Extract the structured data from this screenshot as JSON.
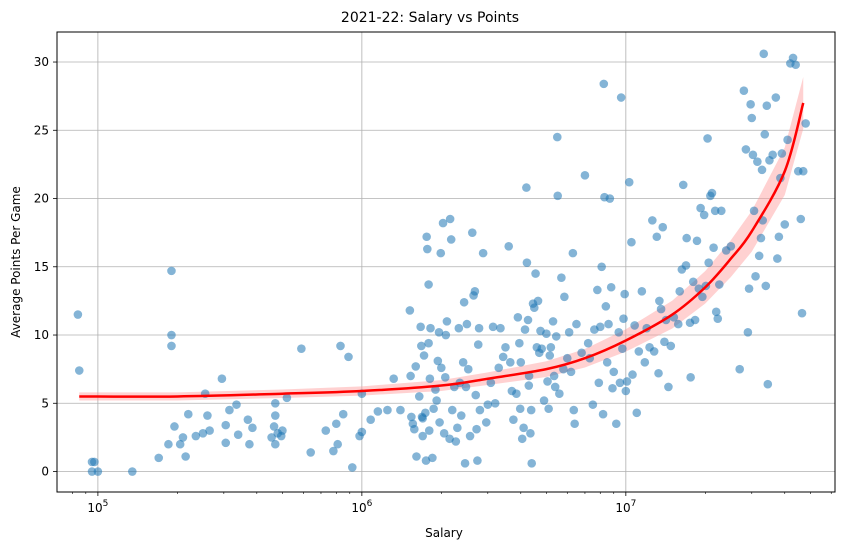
{
  "chart_data": {
    "type": "scatter",
    "title": "2021-22: Salary vs Points",
    "xlabel": "Salary",
    "ylabel": "Average Points Per Game",
    "x_scale": "log",
    "xlim": [
      70000,
      62000000
    ],
    "ylim": [
      -1.5,
      32.2
    ],
    "x_ticks": [
      100000,
      1000000,
      10000000
    ],
    "x_tick_labels": [
      {
        "base": "10",
        "exp": "5"
      },
      {
        "base": "10",
        "exp": "6"
      },
      {
        "base": "10",
        "exp": "7"
      }
    ],
    "y_ticks": [
      0,
      5,
      10,
      15,
      20,
      25,
      30
    ],
    "grid": true,
    "colors": {
      "points": "#1f77b4",
      "fit_line": "#ff0000",
      "confidence_band": "#ff9a9a",
      "grid": "#b0b0b0"
    },
    "regression_fit": {
      "x": [
        85000,
        200000,
        500000,
        1000000,
        2000000,
        3000000,
        5000000,
        7000000,
        10000000,
        15000000,
        20000000,
        25000000,
        30000000,
        40000000,
        47000000
      ],
      "y": [
        5.5,
        5.5,
        5.7,
        5.9,
        6.3,
        6.8,
        7.5,
        8.3,
        9.6,
        11.5,
        13.5,
        15.6,
        17.6,
        22.0,
        27.0
      ]
    },
    "points": [
      [
        84000,
        11.5
      ],
      [
        85000,
        7.4
      ],
      [
        95000,
        0.0
      ],
      [
        95000,
        0.7
      ],
      [
        97000,
        0.7
      ],
      [
        100000,
        0.0
      ],
      [
        135000,
        0.0
      ],
      [
        170000,
        1.0
      ],
      [
        185000,
        2.0
      ],
      [
        190000,
        9.2
      ],
      [
        190000,
        10.0
      ],
      [
        190000,
        14.7
      ],
      [
        195000,
        3.3
      ],
      [
        205000,
        2.0
      ],
      [
        210000,
        2.5
      ],
      [
        215000,
        1.1
      ],
      [
        220000,
        4.2
      ],
      [
        235000,
        2.6
      ],
      [
        250000,
        2.8
      ],
      [
        255000,
        5.7
      ],
      [
        260000,
        4.1
      ],
      [
        265000,
        3.0
      ],
      [
        295000,
        6.8
      ],
      [
        305000,
        2.1
      ],
      [
        305000,
        3.4
      ],
      [
        315000,
        4.5
      ],
      [
        335000,
        4.9
      ],
      [
        340000,
        2.7
      ],
      [
        370000,
        3.8
      ],
      [
        375000,
        2.0
      ],
      [
        385000,
        3.2
      ],
      [
        455000,
        2.5
      ],
      [
        465000,
        3.3
      ],
      [
        470000,
        4.1
      ],
      [
        470000,
        5.0
      ],
      [
        470000,
        2.0
      ],
      [
        480000,
        2.8
      ],
      [
        495000,
        2.6
      ],
      [
        500000,
        3.0
      ],
      [
        520000,
        5.4
      ],
      [
        590000,
        9.0
      ],
      [
        640000,
        1.4
      ],
      [
        730000,
        3.0
      ],
      [
        780000,
        1.5
      ],
      [
        800000,
        3.5
      ],
      [
        810000,
        2.0
      ],
      [
        830000,
        9.2
      ],
      [
        850000,
        4.2
      ],
      [
        890000,
        8.4
      ],
      [
        920000,
        0.3
      ],
      [
        980000,
        2.6
      ],
      [
        1000000,
        5.7
      ],
      [
        1000000,
        2.9
      ],
      [
        1080000,
        3.8
      ],
      [
        1150000,
        4.4
      ],
      [
        1250000,
        4.5
      ],
      [
        1320000,
        6.8
      ],
      [
        1400000,
        4.5
      ],
      [
        1520000,
        11.8
      ],
      [
        1530000,
        7.0
      ],
      [
        1540000,
        4.0
      ],
      [
        1560000,
        3.5
      ],
      [
        1580000,
        3.1
      ],
      [
        1600000,
        7.7
      ],
      [
        1610000,
        1.1
      ],
      [
        1650000,
        5.5
      ],
      [
        1670000,
        10.6
      ],
      [
        1680000,
        9.2
      ],
      [
        1690000,
        4.0
      ],
      [
        1700000,
        3.9
      ],
      [
        1700000,
        2.6
      ],
      [
        1720000,
        8.5
      ],
      [
        1740000,
        4.3
      ],
      [
        1750000,
        0.8
      ],
      [
        1760000,
        17.2
      ],
      [
        1770000,
        16.3
      ],
      [
        1790000,
        13.7
      ],
      [
        1790000,
        9.4
      ],
      [
        1800000,
        3.0
      ],
      [
        1810000,
        6.8
      ],
      [
        1820000,
        10.5
      ],
      [
        1850000,
        1.0
      ],
      [
        1870000,
        4.6
      ],
      [
        1900000,
        6.0
      ],
      [
        1920000,
        5.2
      ],
      [
        1940000,
        8.1
      ],
      [
        1960000,
        10.2
      ],
      [
        1970000,
        3.6
      ],
      [
        1990000,
        16.0
      ],
      [
        2000000,
        7.6
      ],
      [
        2030000,
        18.2
      ],
      [
        2050000,
        2.8
      ],
      [
        2070000,
        6.9
      ],
      [
        2080000,
        10.0
      ],
      [
        2100000,
        11.0
      ],
      [
        2150000,
        2.4
      ],
      [
        2160000,
        18.5
      ],
      [
        2180000,
        17.0
      ],
      [
        2200000,
        4.5
      ],
      [
        2240000,
        6.2
      ],
      [
        2270000,
        2.2
      ],
      [
        2300000,
        3.2
      ],
      [
        2330000,
        10.5
      ],
      [
        2350000,
        6.5
      ],
      [
        2380000,
        4.1
      ],
      [
        2420000,
        8.0
      ],
      [
        2440000,
        12.4
      ],
      [
        2460000,
        0.6
      ],
      [
        2480000,
        6.2
      ],
      [
        2500000,
        10.8
      ],
      [
        2530000,
        7.5
      ],
      [
        2570000,
        2.6
      ],
      [
        2620000,
        17.5
      ],
      [
        2650000,
        12.9
      ],
      [
        2680000,
        13.2
      ],
      [
        2700000,
        5.6
      ],
      [
        2720000,
        3.1
      ],
      [
        2740000,
        0.8
      ],
      [
        2760000,
        9.3
      ],
      [
        2780000,
        10.5
      ],
      [
        2800000,
        4.5
      ],
      [
        2880000,
        16.0
      ],
      [
        2960000,
        3.6
      ],
      [
        3000000,
        4.9
      ],
      [
        3080000,
        6.5
      ],
      [
        3140000,
        10.6
      ],
      [
        3200000,
        5.0
      ],
      [
        3300000,
        7.6
      ],
      [
        3350000,
        10.5
      ],
      [
        3430000,
        8.4
      ],
      [
        3500000,
        9.1
      ],
      [
        3600000,
        16.5
      ],
      [
        3650000,
        8.0
      ],
      [
        3700000,
        5.9
      ],
      [
        3750000,
        3.8
      ],
      [
        3850000,
        5.7
      ],
      [
        3900000,
        11.3
      ],
      [
        3950000,
        9.4
      ],
      [
        3980000,
        4.6
      ],
      [
        4000000,
        8.0
      ],
      [
        4050000,
        2.4
      ],
      [
        4100000,
        3.2
      ],
      [
        4150000,
        10.4
      ],
      [
        4200000,
        20.8
      ],
      [
        4220000,
        15.3
      ],
      [
        4260000,
        11.1
      ],
      [
        4290000,
        6.3
      ],
      [
        4300000,
        7.0
      ],
      [
        4350000,
        2.8
      ],
      [
        4380000,
        4.5
      ],
      [
        4400000,
        0.6
      ],
      [
        4450000,
        12.3
      ],
      [
        4500000,
        12.0
      ],
      [
        4550000,
        14.5
      ],
      [
        4600000,
        9.1
      ],
      [
        4650000,
        12.5
      ],
      [
        4700000,
        8.7
      ],
      [
        4750000,
        10.3
      ],
      [
        4800000,
        9.0
      ],
      [
        4900000,
        5.2
      ],
      [
        5000000,
        10.1
      ],
      [
        5050000,
        6.6
      ],
      [
        5100000,
        4.6
      ],
      [
        5150000,
        8.5
      ],
      [
        5200000,
        9.1
      ],
      [
        5300000,
        11.0
      ],
      [
        5350000,
        7.0
      ],
      [
        5400000,
        6.2
      ],
      [
        5450000,
        9.9
      ],
      [
        5500000,
        24.5
      ],
      [
        5520000,
        20.2
      ],
      [
        5600000,
        5.7
      ],
      [
        5700000,
        14.2
      ],
      [
        5800000,
        7.5
      ],
      [
        5850000,
        12.8
      ],
      [
        6000000,
        8.3
      ],
      [
        6100000,
        10.2
      ],
      [
        6200000,
        7.3
      ],
      [
        6300000,
        16.0
      ],
      [
        6350000,
        4.5
      ],
      [
        6400000,
        3.5
      ],
      [
        6500000,
        10.8
      ],
      [
        6800000,
        8.7
      ],
      [
        7000000,
        21.7
      ],
      [
        7200000,
        9.4
      ],
      [
        7300000,
        8.3
      ],
      [
        7500000,
        4.9
      ],
      [
        7600000,
        10.4
      ],
      [
        7800000,
        13.3
      ],
      [
        7900000,
        6.5
      ],
      [
        8000000,
        10.6
      ],
      [
        8100000,
        15.0
      ],
      [
        8200000,
        4.2
      ],
      [
        8250000,
        28.4
      ],
      [
        8300000,
        20.1
      ],
      [
        8400000,
        12.1
      ],
      [
        8500000,
        8.0
      ],
      [
        8600000,
        10.8
      ],
      [
        8700000,
        20.0
      ],
      [
        8800000,
        13.5
      ],
      [
        8900000,
        6.1
      ],
      [
        9000000,
        7.3
      ],
      [
        9200000,
        3.5
      ],
      [
        9400000,
        10.2
      ],
      [
        9500000,
        6.5
      ],
      [
        9600000,
        27.4
      ],
      [
        9700000,
        9.0
      ],
      [
        9800000,
        11.2
      ],
      [
        9900000,
        13.0
      ],
      [
        10000000,
        5.9
      ],
      [
        10100000,
        6.6
      ],
      [
        10300000,
        21.2
      ],
      [
        10500000,
        16.8
      ],
      [
        10600000,
        7.1
      ],
      [
        10800000,
        10.7
      ],
      [
        11000000,
        4.3
      ],
      [
        11200000,
        8.8
      ],
      [
        11500000,
        13.2
      ],
      [
        11800000,
        8.0
      ],
      [
        12000000,
        10.5
      ],
      [
        12300000,
        9.1
      ],
      [
        12600000,
        18.4
      ],
      [
        12800000,
        8.8
      ],
      [
        13100000,
        17.2
      ],
      [
        13300000,
        7.2
      ],
      [
        13400000,
        12.5
      ],
      [
        13600000,
        11.9
      ],
      [
        13800000,
        17.9
      ],
      [
        14000000,
        9.5
      ],
      [
        14200000,
        11.1
      ],
      [
        14500000,
        6.2
      ],
      [
        14800000,
        9.2
      ],
      [
        15200000,
        11.3
      ],
      [
        15800000,
        10.8
      ],
      [
        16000000,
        13.2
      ],
      [
        16300000,
        14.8
      ],
      [
        16500000,
        21.0
      ],
      [
        16900000,
        15.1
      ],
      [
        17000000,
        17.1
      ],
      [
        17500000,
        10.9
      ],
      [
        17600000,
        6.9
      ],
      [
        18000000,
        13.9
      ],
      [
        18300000,
        11.1
      ],
      [
        18600000,
        16.9
      ],
      [
        18900000,
        13.4
      ],
      [
        19200000,
        19.3
      ],
      [
        19500000,
        12.8
      ],
      [
        19800000,
        18.8
      ],
      [
        20100000,
        13.6
      ],
      [
        20400000,
        24.4
      ],
      [
        20600000,
        15.3
      ],
      [
        20900000,
        20.2
      ],
      [
        21200000,
        20.4
      ],
      [
        21500000,
        16.4
      ],
      [
        21800000,
        19.1
      ],
      [
        22000000,
        11.7
      ],
      [
        22300000,
        11.2
      ],
      [
        22600000,
        13.7
      ],
      [
        23000000,
        19.1
      ],
      [
        24000000,
        16.2
      ],
      [
        25000000,
        16.5
      ],
      [
        27000000,
        7.5
      ],
      [
        28000000,
        27.9
      ],
      [
        28500000,
        23.6
      ],
      [
        29000000,
        10.2
      ],
      [
        29300000,
        13.4
      ],
      [
        29700000,
        26.9
      ],
      [
        30000000,
        25.9
      ],
      [
        30300000,
        23.2
      ],
      [
        30600000,
        19.1
      ],
      [
        31000000,
        14.3
      ],
      [
        31500000,
        22.7
      ],
      [
        32000000,
        15.8
      ],
      [
        32500000,
        17.1
      ],
      [
        32800000,
        22.1
      ],
      [
        33000000,
        18.4
      ],
      [
        33300000,
        30.6
      ],
      [
        33600000,
        24.7
      ],
      [
        33900000,
        13.6
      ],
      [
        34200000,
        26.8
      ],
      [
        34500000,
        6.4
      ],
      [
        35000000,
        22.8
      ],
      [
        36000000,
        23.2
      ],
      [
        37000000,
        27.4
      ],
      [
        37500000,
        15.6
      ],
      [
        38000000,
        17.2
      ],
      [
        38500000,
        21.5
      ],
      [
        39000000,
        23.3
      ],
      [
        40000000,
        18.1
      ],
      [
        41000000,
        24.3
      ],
      [
        42000000,
        29.9
      ],
      [
        43000000,
        30.3
      ],
      [
        44000000,
        29.8
      ],
      [
        45000000,
        22.0
      ],
      [
        46000000,
        18.5
      ],
      [
        46500000,
        11.6
      ],
      [
        47000000,
        22.0
      ],
      [
        48000000,
        25.5
      ]
    ]
  }
}
